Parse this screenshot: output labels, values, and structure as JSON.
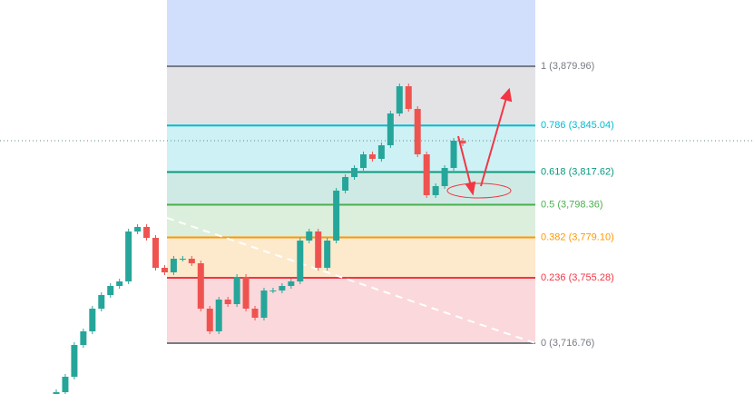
{
  "chart_data": {
    "type": "fibonacci",
    "levels": [
      {
        "value": 3879.96,
        "label": "1 (3,879.96)",
        "color": "#787b86",
        "fill": "#e3e3e6"
      },
      {
        "value": 3845.04,
        "label": "0.786 (3,845.04)",
        "color": "#00bcd4",
        "fill": "#cdf1f5"
      },
      {
        "value": 3817.62,
        "label": "0.618 (3,817.62)",
        "color": "#089981",
        "fill": "#cfeae4"
      },
      {
        "value": 3798.36,
        "label": "0.5 (3,798.36)",
        "color": "#4caf50",
        "fill": "#dbefdc"
      },
      {
        "value": 3779.1,
        "label": "0.382 (3,779.10)",
        "color": "#ff9800",
        "fill": "#fde9cc"
      },
      {
        "value": 3755.28,
        "label": "0.236 (3,755.28)",
        "color": "#f23645",
        "fill": "#fbd8db"
      },
      {
        "value": 3716.76,
        "label": "0 (3,716.76)",
        "color": "#787b86",
        "fill": null
      }
    ],
    "top_fill": "#d1dffc",
    "up_color": "#26a69a",
    "down_color": "#ef5350",
    "open": [
      3684.5,
      3687.87,
      3696.96,
      3715.69,
      3723.72,
      3737.09,
      3745.12,
      3750.47,
      3753.15,
      3782.58,
      3785.25,
      3778.83,
      3761.17,
      3758.5,
      3766.52,
      3766.52,
      3763.85,
      3737.09,
      3723.72,
      3742.44,
      3739.77,
      3755.82,
      3737.09,
      3731.74,
      3747.8,
      3747.8,
      3750.47,
      3753.15,
      3777.23,
      3782.58,
      3761.17,
      3777.23,
      3806.66,
      3814.68,
      3820.03,
      3828.06,
      3825.38,
      3833.41,
      3852.14,
      3868.19,
      3854.82,
      3828.06,
      3803.98,
      3809.33,
      3820.03,
      3836.09
    ],
    "close": [
      3687.87,
      3696.96,
      3715.69,
      3723.72,
      3737.09,
      3745.12,
      3750.47,
      3753.15,
      3782.58,
      3785.25,
      3778.83,
      3761.17,
      3758.5,
      3766.52,
      3766.52,
      3763.85,
      3737.09,
      3723.72,
      3742.44,
      3739.77,
      3755.82,
      3737.09,
      3731.74,
      3747.8,
      3747.8,
      3750.47,
      3753.15,
      3777.23,
      3782.58,
      3761.17,
      3777.23,
      3806.66,
      3814.68,
      3820.03,
      3828.06,
      3825.38,
      3833.41,
      3852.14,
      3868.19,
      3854.82,
      3828.06,
      3803.98,
      3809.33,
      3820.03,
      3836.09,
      3834.48
    ]
  }
}
